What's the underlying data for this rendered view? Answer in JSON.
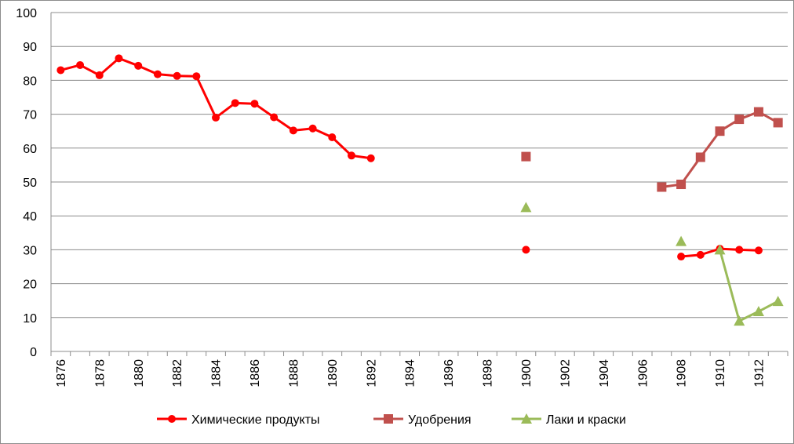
{
  "chart_data": {
    "type": "line",
    "title": "",
    "xlabel": "",
    "ylabel": "",
    "ylim": [
      0,
      100
    ],
    "yticks": [
      0,
      10,
      20,
      30,
      40,
      50,
      60,
      70,
      80,
      90,
      100
    ],
    "xlim": [
      1876,
      1913
    ],
    "xtick_labels": [
      "1876",
      "1878",
      "1880",
      "1882",
      "1884",
      "1886",
      "1888",
      "1890",
      "1892",
      "1894",
      "1896",
      "1898",
      "1900",
      "1902",
      "1904",
      "1906",
      "1908",
      "1910",
      "1912"
    ],
    "grid": "horizontal",
    "legend_position": "bottom",
    "series": [
      {
        "name": "Химические продукты",
        "color": "#ff0000",
        "marker": "circle",
        "segments": [
          [
            [
              1876,
              83
            ],
            [
              1877,
              84.5
            ],
            [
              1878,
              81.5
            ],
            [
              1879,
              86.5
            ],
            [
              1880,
              84.3
            ],
            [
              1881,
              81.8
            ],
            [
              1882,
              81.3
            ],
            [
              1883,
              81.2
            ],
            [
              1884,
              69
            ],
            [
              1885,
              73.3
            ],
            [
              1886,
              73.1
            ],
            [
              1887,
              69.1
            ],
            [
              1888,
              65.2
            ],
            [
              1889,
              65.8
            ],
            [
              1890,
              63.2
            ],
            [
              1891,
              57.8
            ],
            [
              1892,
              57
            ]
          ],
          [
            [
              1900,
              30
            ]
          ],
          [
            [
              1908,
              28
            ],
            [
              1909,
              28.5
            ],
            [
              1910,
              30.3
            ],
            [
              1911,
              30
            ],
            [
              1912,
              29.8
            ]
          ]
        ]
      },
      {
        "name": "Удобрения",
        "color": "#c0504d",
        "marker": "square",
        "segments": [
          [
            [
              1900,
              57.5
            ]
          ],
          [
            [
              1907,
              48.5
            ],
            [
              1908,
              49.3
            ],
            [
              1909,
              57.3
            ],
            [
              1910,
              65
            ],
            [
              1911,
              68.5
            ],
            [
              1912,
              70.7
            ],
            [
              1913,
              67.5
            ]
          ]
        ]
      },
      {
        "name": "Лаки и краски",
        "color": "#9bbb59",
        "marker": "triangle",
        "segments": [
          [
            [
              1900,
              42.5
            ]
          ],
          [
            [
              1908,
              32.5
            ]
          ],
          [
            [
              1910,
              30
            ],
            [
              1911,
              9
            ],
            [
              1912,
              11.8
            ],
            [
              1913,
              14.8
            ]
          ]
        ]
      }
    ]
  }
}
